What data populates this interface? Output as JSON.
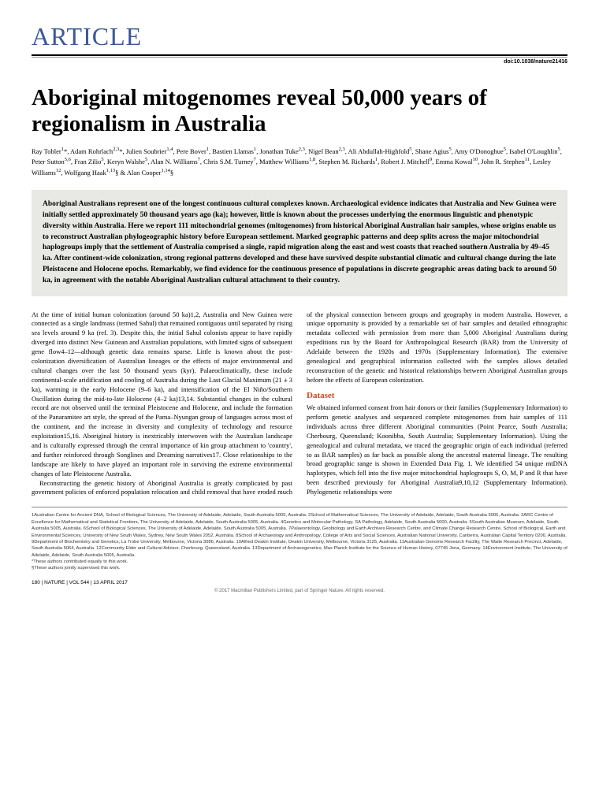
{
  "header": {
    "article_label": "ARTICLE",
    "doi": "doi:10.1038/nature21416"
  },
  "title": "Aboriginal mitogenomes reveal 50,000 years of regionalism in Australia",
  "authors_html": "Ray Tobler<sup>1</sup>*, Adam Rohrlach<sup>2,3</sup>*, Julien Soubrier<sup>1,4</sup>, Pere Bover<sup>1</sup>, Bastien Llamas<sup>1</sup>, Jonathan Tuke<sup>2,3</sup>, Nigel Bean<sup>2,3</sup>, Ali Abdullah-Highfold<sup>5</sup>, Shane Agius<sup>5</sup>, Amy O'Donoghue<sup>5</sup>, Isabel O'Loughlin<sup>5</sup>, Peter Sutton<sup>5,6</sup>, Fran Zilio<sup>5</sup>, Keryn Walshe<sup>5</sup>, Alan N. Williams<sup>7</sup>, Chris S.M. Turney<sup>7</sup>, Matthew Williams<sup>1,8</sup>, Stephen M. Richards<sup>1</sup>, Robert J. Mitchell<sup>9</sup>, Emma Kowal<sup>10</sup>, John R. Stephen<sup>11</sup>, Lesley Williams<sup>12</sup>, Wolfgang Haak<sup>1,13</sup>§ & Alan Cooper<sup>1,14</sup>§",
  "abstract": "Aboriginal Australians represent one of the longest continuous cultural complexes known. Archaeological evidence indicates that Australia and New Guinea were initially settled approximately 50 thousand years ago (ka); however, little is known about the processes underlying the enormous linguistic and phenotypic diversity within Australia. Here we report 111 mitochondrial genomes (mitogenomes) from historical Aboriginal Australian hair samples, whose origins enable us to reconstruct Australian phylogeographic history before European settlement. Marked geographic patterns and deep splits across the major mitochondrial haplogroups imply that the settlement of Australia comprised a single, rapid migration along the east and west coasts that reached southern Australia by 49–45 ka. After continent-wide colonization, strong regional patterns developed and these have survived despite substantial climatic and cultural change during the late Pleistocene and Holocene epochs. Remarkably, we find evidence for the continuous presence of populations in discrete geographic areas dating back to around 50 ka, in agreement with the notable Aboriginal Australian cultural attachment to their country.",
  "body": {
    "p1": "At the time of initial human colonization (around 50 ka)1,2, Australia and New Guinea were connected as a single landmass (termed Sahul) that remained contiguous until separated by rising sea levels around 9 ka (ref. 3). Despite this, the initial Sahul colonists appear to have rapidly diverged into distinct New Guinean and Australian populations, with limited signs of subsequent gene flow4–12—although genetic data remains sparse. Little is known about the post-colonization diversification of Australian lineages or the effects of major environmental and cultural changes over the last 50 thousand years (kyr). Palaeoclimatically, these include continental-scale aridification and cooling of Australia during the Last Glacial Maximum (21 ± 3 ka), warming in the early Holocene (9–6 ka), and intensification of the El Niño/Southern Oscillation during the mid-to-late Holocene (4–2 ka)13,14. Substantial changes in the cultural record are not observed until the terminal Pleistocene and Holocene, and include the formation of the Panaramitee art style, the spread of the Pama–Nyungan group of languages across most of the continent, and the increase in diversity and complexity of technology and resource exploitation15,16. Aboriginal history is inextricably interwoven with the Australian landscape and is culturally expressed through the central importance of kin group attachment to 'country', and further reinforced through Songlines and Dreaming narratives17. Close relationships to the landscape are likely to have played an important role in surviving the extreme environmental changes of late Pleistocene Australia.",
    "p2": "Reconstructing the genetic history of Aboriginal Australia is greatly complicated by past government policies of enforced population relocation and child removal that have eroded much of the physical connection between groups and geography in modern Australia. However, a unique opportunity is provided by a remarkable set of hair samples and detailed ethnographic metadata collected with permission from more than 5,000 Aboriginal Australians during expeditions run by the Board for Anthropological Research (BAR) from the University of Adelaide between the 1920s and 1970s (Supplementary Information). The extensive genealogical and geographical information collected with the samples allows detailed reconstruction of the genetic and historical relationships between Aboriginal Australian groups before the effects of European colonization.",
    "dataset_head": "Dataset",
    "p3": "We obtained informed consent from hair donors or their families (Supplementary Information) to perform genetic analyses and sequenced complete mitogenomes from hair samples of 111 individuals across three different Aboriginal communities (Point Pearce, South Australia; Cherbourg, Queensland; Koonibba, South Australia; Supplementary Information). Using the genealogical and cultural metadata, we traced the geographic origin of each individual (referred to as BAR samples) as far back as possible along the ancestral maternal lineage. The resulting broad geographic range is shown in Extended Data Fig. 1. We identified 54 unique mtDNA haplotypes, which fell into the five major mitochondrial haplogroups S, O, M, P and R that have been described previously for Aboriginal Australia9,10,12 (Supplementary Information). Phylogenetic relationships were"
  },
  "affiliations": "1Australian Centre for Ancient DNA, School of Biological Sciences, The University of Adelaide, Adelaide, South Australia 5005, Australia. 2School of Mathematical Sciences, The University of Adelaide, Adelaide, South Australia 5005, Australia. 3ARC Centre of Excellence for Mathematical and Statistical Frontiers, The University of Adelaide, Adelaide, South Australia 5005, Australia. 4Genetics and Molecular Pathology, SA Pathology, Adelaide, South Australia 5000, Australia. 5South Australian Museum, Adelaide, South Australia 5005, Australia. 6School of Biological Sciences, The University of Adelaide, Adelaide, South Australia 5005, Australia. 7Palaeontology, Geobiology and Earth Archives Research Centre, and Climate Change Research Centre, School of Biological, Earth and Environmental Sciences, University of New South Wales, Sydney, New South Wales 2052, Australia. 8School of Archaeology and Anthropology, College of Arts and Social Sciences, Australian National University, Canberra, Australian Capital Territory 0200, Australia. 9Department of Biochemistry and Genetics, La Trobe University, Melbourne, Victoria 3086, Australia. 10Alfred Deakin Institute, Deakin University, Melbourne, Victoria 3125, Australia. 11Australian Genome Research Facility, The Waite Research Precinct, Adelaide, South Australia 5064, Australia. 12Community Elder and Cultural Advisor, Cherbourg, Queensland, Australia. 13Department of Archaeogenetics, Max Planck Institute for the Science of Human History, 07745 Jena, Germany. 14Environment Institute, The University of Adelaide, Adelaide, South Australia 5005, Australia.",
  "author_notes": {
    "equal": "*These authors contributed equally to this work.",
    "supervised": "§These authors jointly supervised this work."
  },
  "footer": {
    "page_info": "180 | NATURE | VOL 544 | 13 APRIL 2017",
    "copyright": "© 2017 Macmillan Publishers Limited, part of Springer Nature. All rights reserved."
  }
}
